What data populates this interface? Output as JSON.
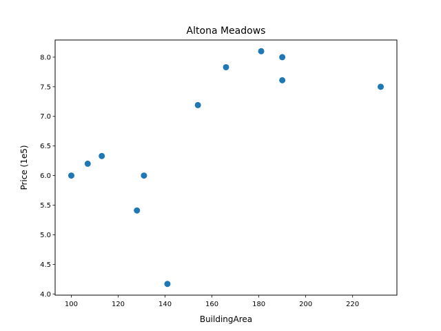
{
  "chart_data": {
    "type": "scatter",
    "title": "Altona Meadows",
    "xlabel": "BuildingArea",
    "ylabel": "Price (1e5)",
    "xlim": [
      93.1,
      238.9
    ],
    "ylim": [
      3.98,
      8.29
    ],
    "xticks": [
      100,
      120,
      140,
      160,
      180,
      200,
      220
    ],
    "yticks": [
      4.0,
      4.5,
      5.0,
      5.5,
      6.0,
      6.5,
      7.0,
      7.5,
      8.0
    ],
    "xtick_labels": [
      "100",
      "120",
      "140",
      "160",
      "180",
      "200",
      "220"
    ],
    "ytick_labels": [
      "4.0",
      "4.5",
      "5.0",
      "5.5",
      "6.0",
      "6.5",
      "7.0",
      "7.5",
      "8.0"
    ],
    "grid": false,
    "marker_color": "#1f77b4",
    "points": [
      {
        "x": 100,
        "y": 6.0
      },
      {
        "x": 107,
        "y": 6.2
      },
      {
        "x": 113,
        "y": 6.33
      },
      {
        "x": 128,
        "y": 5.41
      },
      {
        "x": 131,
        "y": 6.0
      },
      {
        "x": 141,
        "y": 4.17
      },
      {
        "x": 154,
        "y": 7.19
      },
      {
        "x": 166,
        "y": 7.83
      },
      {
        "x": 181,
        "y": 8.1
      },
      {
        "x": 190,
        "y": 8.0
      },
      {
        "x": 190,
        "y": 7.61
      },
      {
        "x": 232,
        "y": 7.5
      }
    ]
  }
}
